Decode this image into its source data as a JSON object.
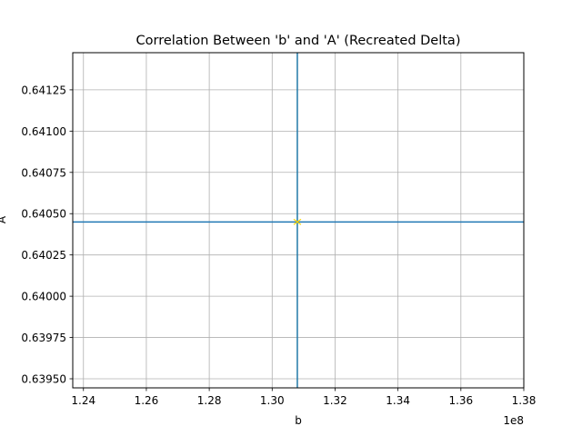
{
  "chart_data": {
    "type": "scatter",
    "title": "Correlation Between 'b' and 'A' (Recreated Delta)",
    "xlabel": "b",
    "ylabel": "A",
    "x_offset_label": "1e8",
    "xlim": [
      1.2366,
      1.38
    ],
    "ylim": [
      0.639445,
      0.641475
    ],
    "grid": true,
    "x_ticks": [
      1.24,
      1.26,
      1.28,
      1.3,
      1.32,
      1.34,
      1.36,
      1.38
    ],
    "x_tick_labels": [
      "1.24",
      "1.26",
      "1.28",
      "1.30",
      "1.32",
      "1.34",
      "1.36",
      "1.38"
    ],
    "y_ticks": [
      0.6395,
      0.63975,
      0.64,
      0.64025,
      0.6405,
      0.64075,
      0.641,
      0.64125
    ],
    "y_tick_labels": [
      "0.63950",
      "0.63975",
      "0.64000",
      "0.64025",
      "0.64050",
      "0.64075",
      "0.64100",
      "0.64125"
    ],
    "vline_x": 1.308,
    "hline_y": 0.64045,
    "points": [
      {
        "x": 1.308,
        "y": 0.64045
      }
    ],
    "colors": {
      "lines": "#1f77b4",
      "marker": "#ffd700",
      "lines_overlay": "#2a8080",
      "grid": "#b0b0b0"
    }
  }
}
